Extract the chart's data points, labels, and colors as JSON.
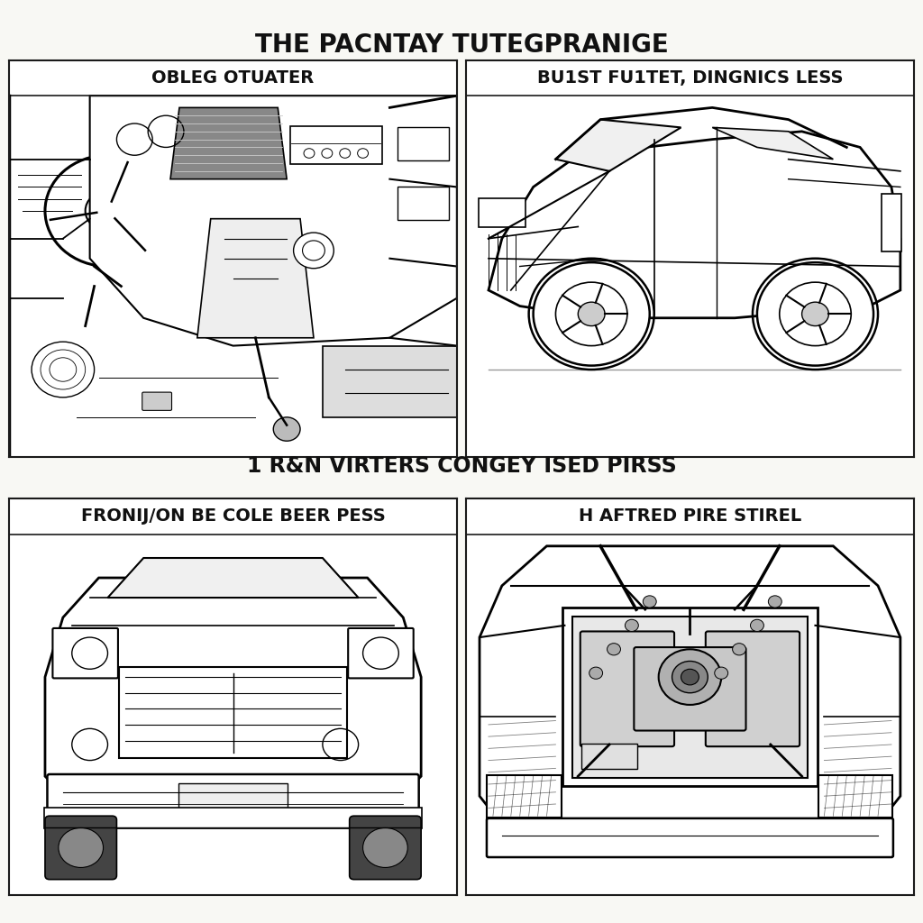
{
  "title": "THE PACNTAY TUTEGPRANIGE",
  "subtitle": "1 R&N VIRTERS CONGEY ISED PIRSS",
  "panel_labels": [
    "OBLEG OTUATER",
    "BU1ST FU1TET, DINGNICS LESS",
    "FRONIJ/ON BE COLE BEER PESS",
    "H AFTRED PIRE STIREL"
  ],
  "background_color": "#f8f8f4",
  "panel_bg": "#ffffff",
  "border_color": "#1a1a1a",
  "title_fontsize": 20,
  "subtitle_fontsize": 17,
  "panel_label_fontsize": 14,
  "text_color": "#111111"
}
